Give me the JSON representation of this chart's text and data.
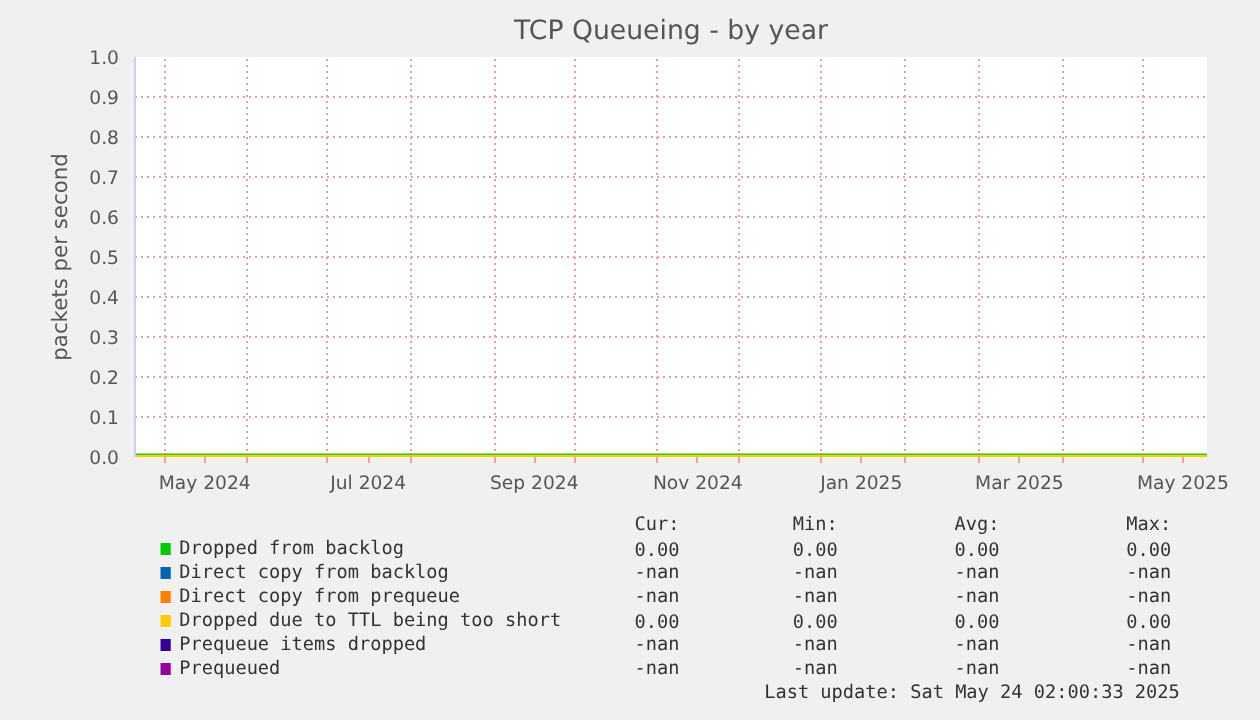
{
  "chart_data": {
    "type": "line",
    "title": "TCP Queueing - by year",
    "ylabel": "packets per second",
    "x": [
      "2024-04-20",
      "2025-05-25"
    ],
    "series": [
      {
        "name": "Dropped from backlog",
        "color": "#00cc00",
        "values": [
          0,
          0
        ]
      },
      {
        "name": "Direct copy from backlog",
        "color": "#0066b3",
        "values": [
          null,
          null
        ]
      },
      {
        "name": "Direct copy from prequeue",
        "color": "#ff8000",
        "values": [
          null,
          null
        ]
      },
      {
        "name": "Dropped due to TTL being too short",
        "color": "#ffcc00",
        "values": [
          0,
          0
        ]
      },
      {
        "name": "Prequeue items dropped",
        "color": "#330099",
        "values": [
          null,
          null
        ]
      },
      {
        "name": "Prequeued",
        "color": "#990099",
        "values": [
          null,
          null
        ]
      }
    ],
    "xlim": [
      "2024-04-20",
      "2025-05-25"
    ],
    "xticks": [
      {
        "value": "2024-05-01",
        "label": null
      },
      {
        "value": "2024-05-16",
        "label": "May 2024"
      },
      {
        "value": "2024-06-01",
        "label": null
      },
      {
        "value": "2024-07-01",
        "label": null
      },
      {
        "value": "2024-07-16",
        "label": "Jul 2024"
      },
      {
        "value": "2024-08-01",
        "label": null
      },
      {
        "value": "2024-09-01",
        "label": null
      },
      {
        "value": "2024-09-16",
        "label": "Sep 2024"
      },
      {
        "value": "2024-10-01",
        "label": null
      },
      {
        "value": "2024-11-01",
        "label": null
      },
      {
        "value": "2024-11-16",
        "label": "Nov 2024"
      },
      {
        "value": "2024-12-01",
        "label": null
      },
      {
        "value": "2025-01-01",
        "label": null
      },
      {
        "value": "2025-01-16",
        "label": "Jan 2025"
      },
      {
        "value": "2025-02-01",
        "label": null
      },
      {
        "value": "2025-03-01",
        "label": null
      },
      {
        "value": "2025-03-16",
        "label": "Mar 2025"
      },
      {
        "value": "2025-04-01",
        "label": null
      },
      {
        "value": "2025-05-01",
        "label": null
      },
      {
        "value": "2025-05-16",
        "label": "May 2025"
      }
    ],
    "ylim": [
      0,
      1.0
    ],
    "yticks": [
      {
        "value": 0,
        "label": "0.0"
      },
      {
        "value": 0.1,
        "label": "0.1"
      },
      {
        "value": 0.2,
        "label": "0.2"
      },
      {
        "value": 0.3,
        "label": "0.3"
      },
      {
        "value": 0.4,
        "label": "0.4"
      },
      {
        "value": 0.5,
        "label": "0.5"
      },
      {
        "value": 0.6,
        "label": "0.6"
      },
      {
        "value": 0.7,
        "label": "0.7"
      },
      {
        "value": 0.8,
        "label": "0.8"
      },
      {
        "value": 0.9,
        "label": "0.9"
      },
      {
        "value": 1.0,
        "label": "1.0"
      }
    ],
    "grid": true,
    "legend": "bottom",
    "marker": "none",
    "line_style": "solid",
    "annotations": [
      "Cur:",
      "Min:",
      "Avg:",
      "Max:",
      "0.00",
      "0.00",
      "0.00",
      "0.00",
      "-nan",
      "-nan",
      "-nan",
      "-nan",
      "-nan",
      "-nan",
      "-nan",
      "-nan",
      "0.00",
      "0.00",
      "0.00",
      "0.00",
      "-nan",
      "-nan",
      "-nan",
      "-nan",
      "-nan",
      "-nan",
      "-nan",
      "-nan",
      "Last update: Sat May 24 02:00:33 2025"
    ]
  }
}
